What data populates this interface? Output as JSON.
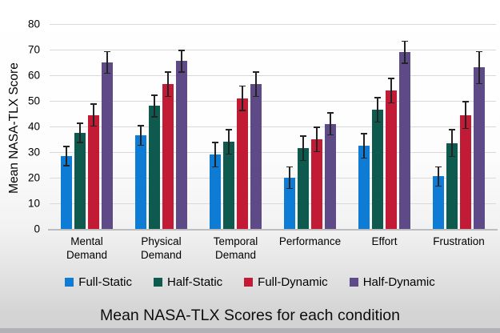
{
  "chart_data": {
    "type": "bar",
    "title": "Mean NASA-TLX Scores for each condition",
    "ylabel": "Mean NASA-TLX Score",
    "ylim": [
      0,
      80
    ],
    "ytick_step": 10,
    "grid": true,
    "legend_position": "bottom",
    "error_bar_color": "#232323",
    "gridline_color": "#d9d9d9",
    "categories": [
      "Mental Demand",
      "Physical Demand",
      "Temporal Demand",
      "Performance",
      "Effort",
      "Frustration"
    ],
    "series": [
      {
        "name": "Full-Static",
        "color": "#0e7cd4",
        "values": [
          28.5,
          36.5,
          29.0,
          20.0,
          32.5,
          20.5
        ],
        "errors": [
          4.0,
          4.0,
          5.0,
          4.5,
          5.0,
          4.0
        ]
      },
      {
        "name": "Half-Static",
        "color": "#0f5a4e",
        "values": [
          37.5,
          48.0,
          34.0,
          31.5,
          46.5,
          33.5
        ],
        "errors": [
          4.0,
          4.5,
          5.0,
          5.0,
          5.0,
          5.5
        ]
      },
      {
        "name": "Full-Dynamic",
        "color": "#c21b35",
        "values": [
          44.5,
          56.5,
          51.0,
          35.0,
          54.0,
          44.5
        ],
        "errors": [
          4.5,
          5.0,
          5.0,
          5.0,
          5.0,
          5.5
        ]
      },
      {
        "name": "Half-Dynamic",
        "color": "#5e4a87",
        "values": [
          65.0,
          65.5,
          56.5,
          41.0,
          69.0,
          63.0
        ],
        "errors": [
          4.5,
          4.5,
          5.0,
          4.5,
          4.5,
          6.5
        ]
      }
    ]
  }
}
